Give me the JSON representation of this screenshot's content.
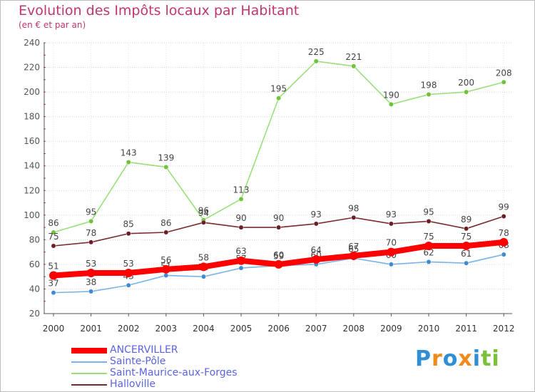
{
  "title": "Evolution des Impôts locaux par Habitant",
  "subtitle": "(en € et par an)",
  "logo": {
    "text": "Proxiti",
    "letters": [
      {
        "ch": "P",
        "color": "#2f8fd6"
      },
      {
        "ch": "r",
        "color": "#f08a1c"
      },
      {
        "ch": "o",
        "color": "#2f8fd6"
      },
      {
        "ch": "x",
        "color": "#f08a1c"
      },
      {
        "ch": "i",
        "color": "#2f8fd6"
      },
      {
        "ch": "t",
        "color": "#7cbf3a"
      },
      {
        "ch": "i",
        "color": "#7cbf3a"
      }
    ]
  },
  "chart_data": {
    "type": "line",
    "x": [
      "2000",
      "2001",
      "2002",
      "2003",
      "2004",
      "2005",
      "2006",
      "2007",
      "2008",
      "2009",
      "2010",
      "2011",
      "2012"
    ],
    "ylim": [
      20,
      240
    ],
    "yticks": [
      "20",
      "40",
      "60",
      "80",
      "100",
      "120",
      "140",
      "160",
      "180",
      "200",
      "220",
      "240"
    ],
    "grid": "horizontal",
    "legend_position": "bottom-left",
    "series": [
      {
        "name": "Saint-Maurice-aux-Forges",
        "color": "#99e07a",
        "marker": "#6fc23a",
        "values": [
          86,
          95,
          143,
          139,
          96,
          113,
          195,
          225,
          221,
          190,
          198,
          200,
          208
        ],
        "labels": [
          "86",
          "95",
          "143",
          "139",
          "96",
          "113",
          "195",
          "225",
          "221",
          "190",
          "198",
          "200",
          "208"
        ]
      },
      {
        "name": "Halloville",
        "color": "#7a2a30",
        "marker": "#6a1f25",
        "values": [
          75,
          78,
          85,
          86,
          94,
          90,
          90,
          93,
          98,
          93,
          95,
          89,
          99
        ],
        "labels": [
          "75",
          "78",
          "85",
          "86",
          "94",
          "90",
          "90",
          "93",
          "98",
          "93",
          "95",
          "89",
          "99"
        ]
      },
      {
        "name": "Sainte-Pôle",
        "color": "#7ab4e6",
        "marker": "#3f8ad0",
        "values": [
          37,
          38,
          43,
          51,
          50,
          57,
          59,
          60,
          65,
          60,
          62,
          61,
          68
        ],
        "labels": [
          "37",
          "38",
          "43",
          "51",
          "50",
          "57",
          "59",
          "60",
          "65",
          "60",
          "62",
          "61",
          "68"
        ]
      },
      {
        "name": "ANCERVILLER",
        "color": "#ff0000",
        "marker": "#ff0000",
        "values": [
          51,
          53,
          53,
          56,
          58,
          63,
          60,
          64,
          67,
          70,
          75,
          75,
          78
        ],
        "labels": [
          "51",
          "53",
          "53",
          "56",
          "58",
          "63",
          "60",
          "64",
          "67",
          "70",
          "75",
          "75",
          "78"
        ]
      }
    ],
    "legend": [
      {
        "name": "ANCERVILLER",
        "color": "#ff0000"
      },
      {
        "name": "Sainte-Pôle",
        "color": "#7ab4e6"
      },
      {
        "name": "Saint-Maurice-aux-Forges",
        "color": "#99e07a"
      },
      {
        "name": "Halloville",
        "color": "#7a2a30"
      }
    ]
  }
}
